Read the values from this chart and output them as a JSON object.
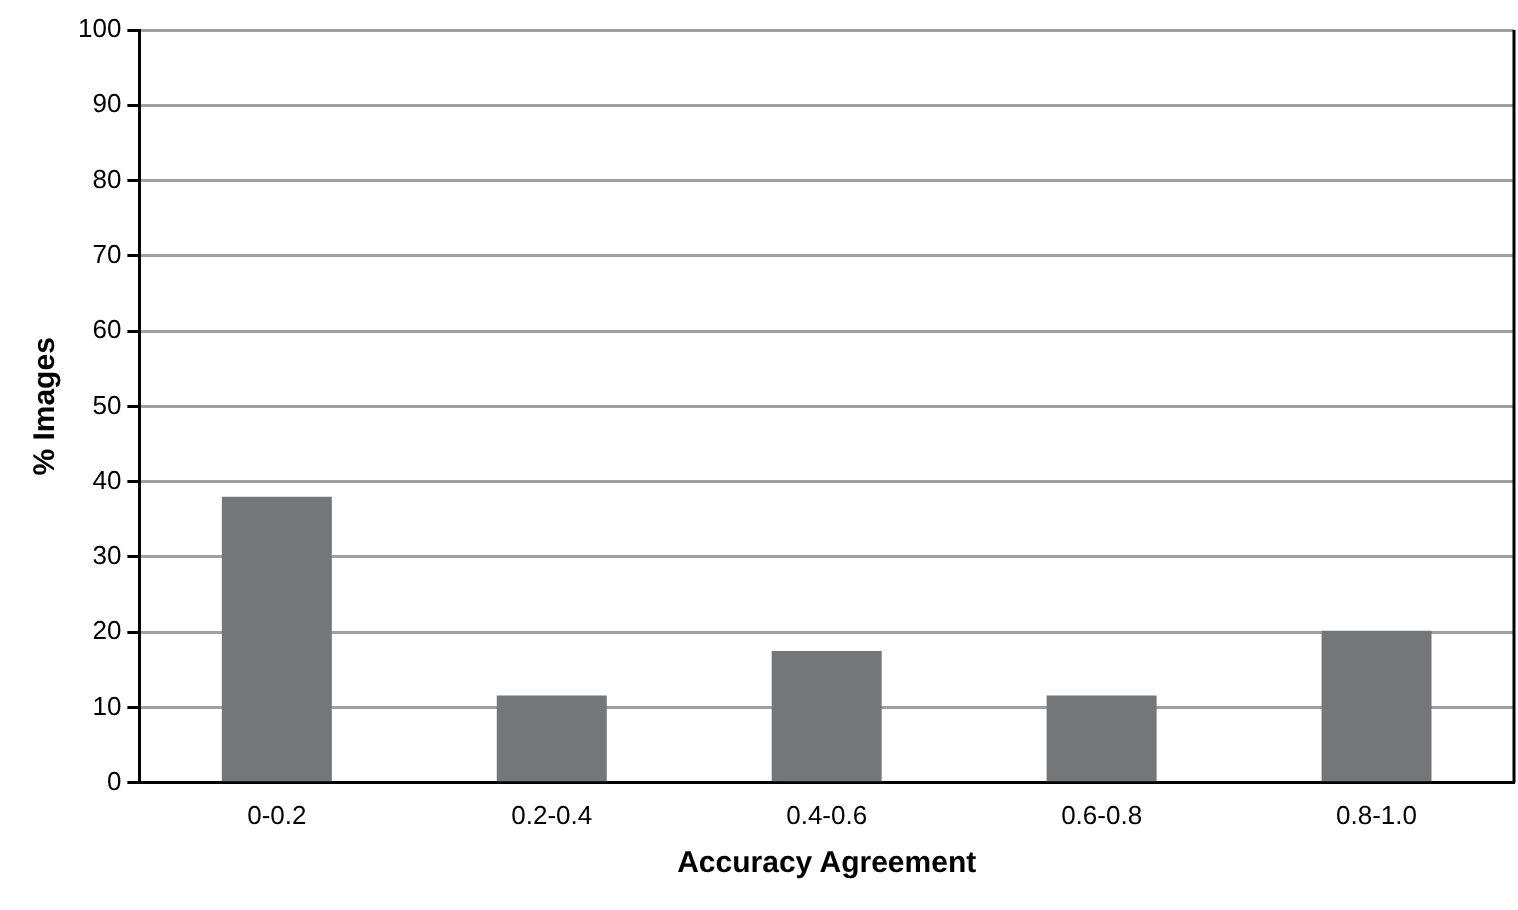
{
  "chart_data": {
    "type": "bar",
    "xlabel": "Accuracy Agreement",
    "ylabel": "% Images",
    "categories": [
      "0-0.2",
      "0.2-0.4",
      "0.4-0.6",
      "0.6-0.8",
      "0.8-1.0"
    ],
    "values": [
      38,
      11.6,
      17.5,
      11.6,
      20.2
    ],
    "color": "#73777a",
    "ylim": [
      0,
      100
    ],
    "yticks": [
      0,
      10,
      20,
      30,
      40,
      50,
      60,
      70,
      80,
      90,
      100
    ],
    "grid": "y",
    "legend": false
  }
}
